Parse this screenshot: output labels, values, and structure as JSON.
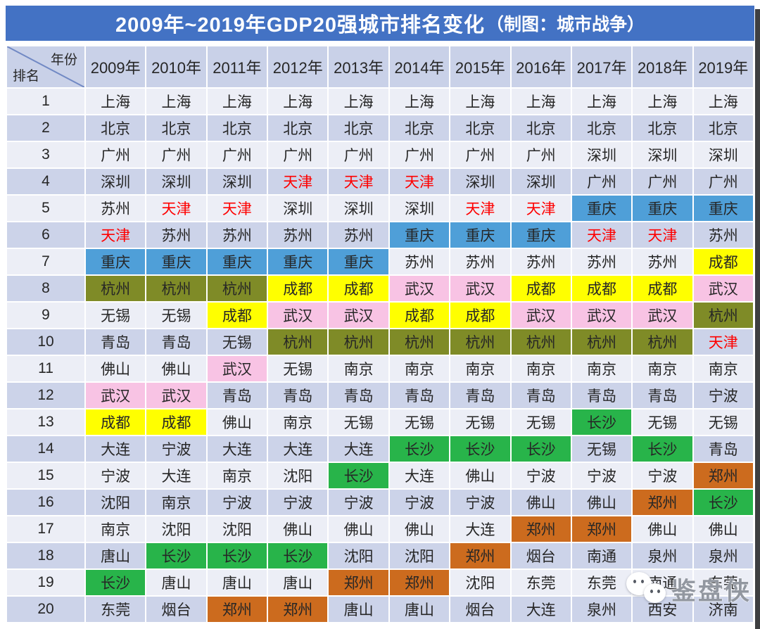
{
  "title": {
    "main": "2009年~2019年GDP20强城市排名变化",
    "credit": "（制图：城市战争）"
  },
  "chart_data": {
    "type": "table",
    "title": "2009年~2019年GDP20强城市排名变化（制图：城市战争）",
    "corner": {
      "top_right": "年份",
      "bottom_left": "排名"
    },
    "columns": [
      "2009年",
      "2010年",
      "2011年",
      "2012年",
      "2013年",
      "2014年",
      "2015年",
      "2016年",
      "2017年",
      "2018年",
      "2019年"
    ],
    "rows": [
      {
        "rank": "1",
        "cities": [
          "上海",
          "上海",
          "上海",
          "上海",
          "上海",
          "上海",
          "上海",
          "上海",
          "上海",
          "上海",
          "上海"
        ]
      },
      {
        "rank": "2",
        "cities": [
          "北京",
          "北京",
          "北京",
          "北京",
          "北京",
          "北京",
          "北京",
          "北京",
          "北京",
          "北京",
          "北京"
        ]
      },
      {
        "rank": "3",
        "cities": [
          "广州",
          "广州",
          "广州",
          "广州",
          "广州",
          "广州",
          "广州",
          "广州",
          "深圳",
          "深圳",
          "深圳"
        ]
      },
      {
        "rank": "4",
        "cities": [
          "深圳",
          "深圳",
          "深圳",
          "天津",
          "天津",
          "天津",
          "深圳",
          "深圳",
          "广州",
          "广州",
          "广州"
        ]
      },
      {
        "rank": "5",
        "cities": [
          "苏州",
          "天津",
          "天津",
          "深圳",
          "深圳",
          "深圳",
          "天津",
          "天津",
          "重庆",
          "重庆",
          "重庆"
        ]
      },
      {
        "rank": "6",
        "cities": [
          "天津",
          "苏州",
          "苏州",
          "苏州",
          "苏州",
          "重庆",
          "重庆",
          "重庆",
          "天津",
          "天津",
          "苏州"
        ]
      },
      {
        "rank": "7",
        "cities": [
          "重庆",
          "重庆",
          "重庆",
          "重庆",
          "重庆",
          "苏州",
          "苏州",
          "苏州",
          "苏州",
          "苏州",
          "成都"
        ]
      },
      {
        "rank": "8",
        "cities": [
          "杭州",
          "杭州",
          "杭州",
          "成都",
          "成都",
          "武汉",
          "武汉",
          "成都",
          "成都",
          "成都",
          "武汉"
        ]
      },
      {
        "rank": "9",
        "cities": [
          "无锡",
          "无锡",
          "成都",
          "武汉",
          "武汉",
          "成都",
          "成都",
          "武汉",
          "武汉",
          "武汉",
          "杭州"
        ]
      },
      {
        "rank": "10",
        "cities": [
          "青岛",
          "青岛",
          "无锡",
          "杭州",
          "杭州",
          "杭州",
          "杭州",
          "杭州",
          "杭州",
          "杭州",
          "天津"
        ]
      },
      {
        "rank": "11",
        "cities": [
          "佛山",
          "佛山",
          "武汉",
          "无锡",
          "南京",
          "南京",
          "南京",
          "南京",
          "南京",
          "南京",
          "南京"
        ]
      },
      {
        "rank": "12",
        "cities": [
          "武汉",
          "武汉",
          "青岛",
          "青岛",
          "青岛",
          "青岛",
          "青岛",
          "青岛",
          "青岛",
          "青岛",
          "宁波"
        ]
      },
      {
        "rank": "13",
        "cities": [
          "成都",
          "成都",
          "佛山",
          "南京",
          "无锡",
          "无锡",
          "无锡",
          "无锡",
          "长沙",
          "无锡",
          "无锡"
        ]
      },
      {
        "rank": "14",
        "cities": [
          "大连",
          "宁波",
          "大连",
          "大连",
          "大连",
          "长沙",
          "长沙",
          "长沙",
          "无锡",
          "长沙",
          "青岛"
        ]
      },
      {
        "rank": "15",
        "cities": [
          "宁波",
          "大连",
          "南京",
          "沈阳",
          "长沙",
          "大连",
          "佛山",
          "宁波",
          "宁波",
          "宁波",
          "郑州"
        ]
      },
      {
        "rank": "16",
        "cities": [
          "沈阳",
          "南京",
          "宁波",
          "宁波",
          "宁波",
          "宁波",
          "宁波",
          "佛山",
          "佛山",
          "郑州",
          "长沙"
        ]
      },
      {
        "rank": "17",
        "cities": [
          "南京",
          "沈阳",
          "沈阳",
          "佛山",
          "佛山",
          "佛山",
          "大连",
          "郑州",
          "郑州",
          "佛山",
          "佛山"
        ]
      },
      {
        "rank": "18",
        "cities": [
          "唐山",
          "长沙",
          "长沙",
          "长沙",
          "沈阳",
          "沈阳",
          "郑州",
          "烟台",
          "南通",
          "泉州",
          "泉州"
        ]
      },
      {
        "rank": "19",
        "cities": [
          "长沙",
          "唐山",
          "唐山",
          "唐山",
          "郑州",
          "郑州",
          "沈阳",
          "东莞",
          "东莞",
          "南通",
          "东莞"
        ]
      },
      {
        "rank": "20",
        "cities": [
          "东莞",
          "烟台",
          "郑州",
          "郑州",
          "唐山",
          "唐山",
          "烟台",
          "大连",
          "泉州",
          "西安",
          "济南"
        ]
      }
    ],
    "highlighted_cities": {
      "重庆": {
        "style": "hl-blue",
        "color": "#4f9fd8"
      },
      "杭州": {
        "style": "hl-olive",
        "color": "#7f8b27"
      },
      "成都": {
        "style": "hl-yellow",
        "color": "#ffff00"
      },
      "武汉": {
        "style": "hl-pink",
        "color": "#f8c3e4"
      },
      "长沙": {
        "style": "hl-green",
        "color": "#28b44a"
      },
      "郑州": {
        "style": "hl-orange",
        "color": "#cc6b1e"
      },
      "天津": {
        "style": "txt-red",
        "color": "#fe0000"
      }
    }
  },
  "colors": {
    "title_bg": "#4372c4",
    "title_text": "#ffffff",
    "header_bg": "#c9d1e8",
    "row_odd": "#eceef6",
    "row_even": "#ccd3e9",
    "cell_text": "#262626",
    "shadow_strip": "#3e3f41"
  },
  "watermark": {
    "icon": "wechat-icon",
    "text": "鉴盘侠"
  }
}
